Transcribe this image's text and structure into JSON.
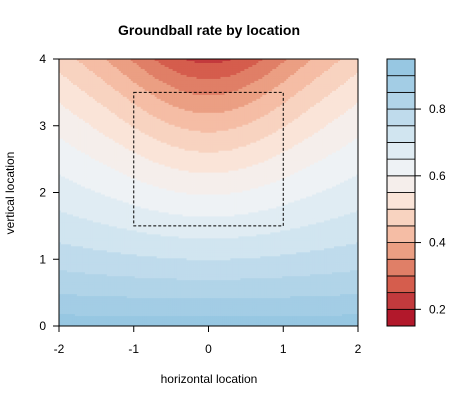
{
  "chart_data": {
    "type": "heatmap",
    "title": "Groundball rate by location",
    "xlabel": "horizontal location",
    "ylabel": "vertical location",
    "xlim": [
      -2,
      2
    ],
    "ylim": [
      0,
      4
    ],
    "x_ticks": [
      "-2",
      "-1",
      "0",
      "1",
      "2"
    ],
    "y_ticks": [
      "0",
      "1",
      "2",
      "3",
      "4"
    ],
    "strike_zone": {
      "x": [
        -1,
        1
      ],
      "y": [
        1.5,
        3.5
      ],
      "style": "dashed"
    },
    "colorbar": {
      "ticks": [
        "0.2",
        "0.4",
        "0.6",
        "0.8"
      ],
      "levels": [
        0.15,
        0.2,
        0.25,
        0.3,
        0.35,
        0.4,
        0.45,
        0.5,
        0.55,
        0.6,
        0.65,
        0.7,
        0.75,
        0.8,
        0.85,
        0.9,
        0.95
      ],
      "colors": [
        "#b2182b",
        "#c33a3d",
        "#d55d4d",
        "#e07f67",
        "#eb9f83",
        "#f5bda5",
        "#f8d3c0",
        "#fae4d8",
        "#f5eeeb",
        "#eef2f5",
        "#e0ecf3",
        "#d1e5f0",
        "#bfdbec",
        "#b1d4e8",
        "#a3cde5",
        "#97c7e2"
      ]
    },
    "legend": "right",
    "grid": false
  }
}
